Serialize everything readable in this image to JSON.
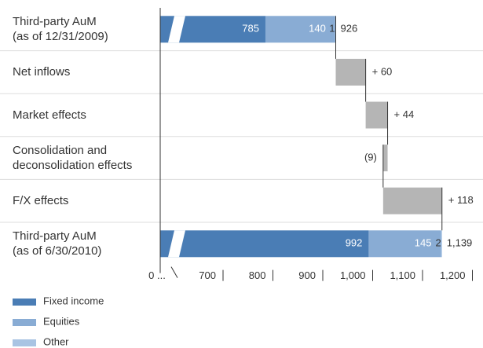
{
  "chart_data": {
    "type": "waterfall",
    "categories": [
      "Third-party AuM\n(as of 12/31/2009)",
      "Net inflows",
      "Market effects",
      "Consolidation and\ndeconsolidation effects",
      "F/X effects",
      "Third-party AuM\n(as of 6/30/2010)"
    ],
    "series": [
      {
        "name": "Fixed income",
        "color": "#4a7db5",
        "values": [
          785,
          null,
          null,
          null,
          null,
          992
        ]
      },
      {
        "name": "Equities",
        "color": "#89acd4",
        "values": [
          140,
          null,
          null,
          null,
          null,
          145
        ]
      },
      {
        "name": "Other",
        "color": "#a9c4e3",
        "values": [
          1,
          null,
          null,
          null,
          null,
          2
        ]
      }
    ],
    "totals": {
      "values": [
        926,
        null,
        null,
        null,
        null,
        1139
      ],
      "value_labels": [
        "926",
        null,
        null,
        null,
        null,
        "1,139"
      ]
    },
    "changes": {
      "color": "#b5b5b5",
      "values": [
        null,
        60,
        44,
        -9,
        118,
        null
      ],
      "value_labels": [
        null,
        "+ 60",
        "+ 44",
        "(9)",
        "+ 118",
        null
      ]
    },
    "xlim": [
      0,
      1200
    ],
    "axis_break": [
      0,
      700
    ],
    "xticks": [
      {
        "value": 0,
        "label": "0 ..."
      },
      700,
      800,
      900,
      {
        "value": 1000,
        "label": "1,000"
      },
      {
        "value": 1100,
        "label": "1,100"
      },
      {
        "value": 1200,
        "label": "1,200"
      }
    ]
  }
}
